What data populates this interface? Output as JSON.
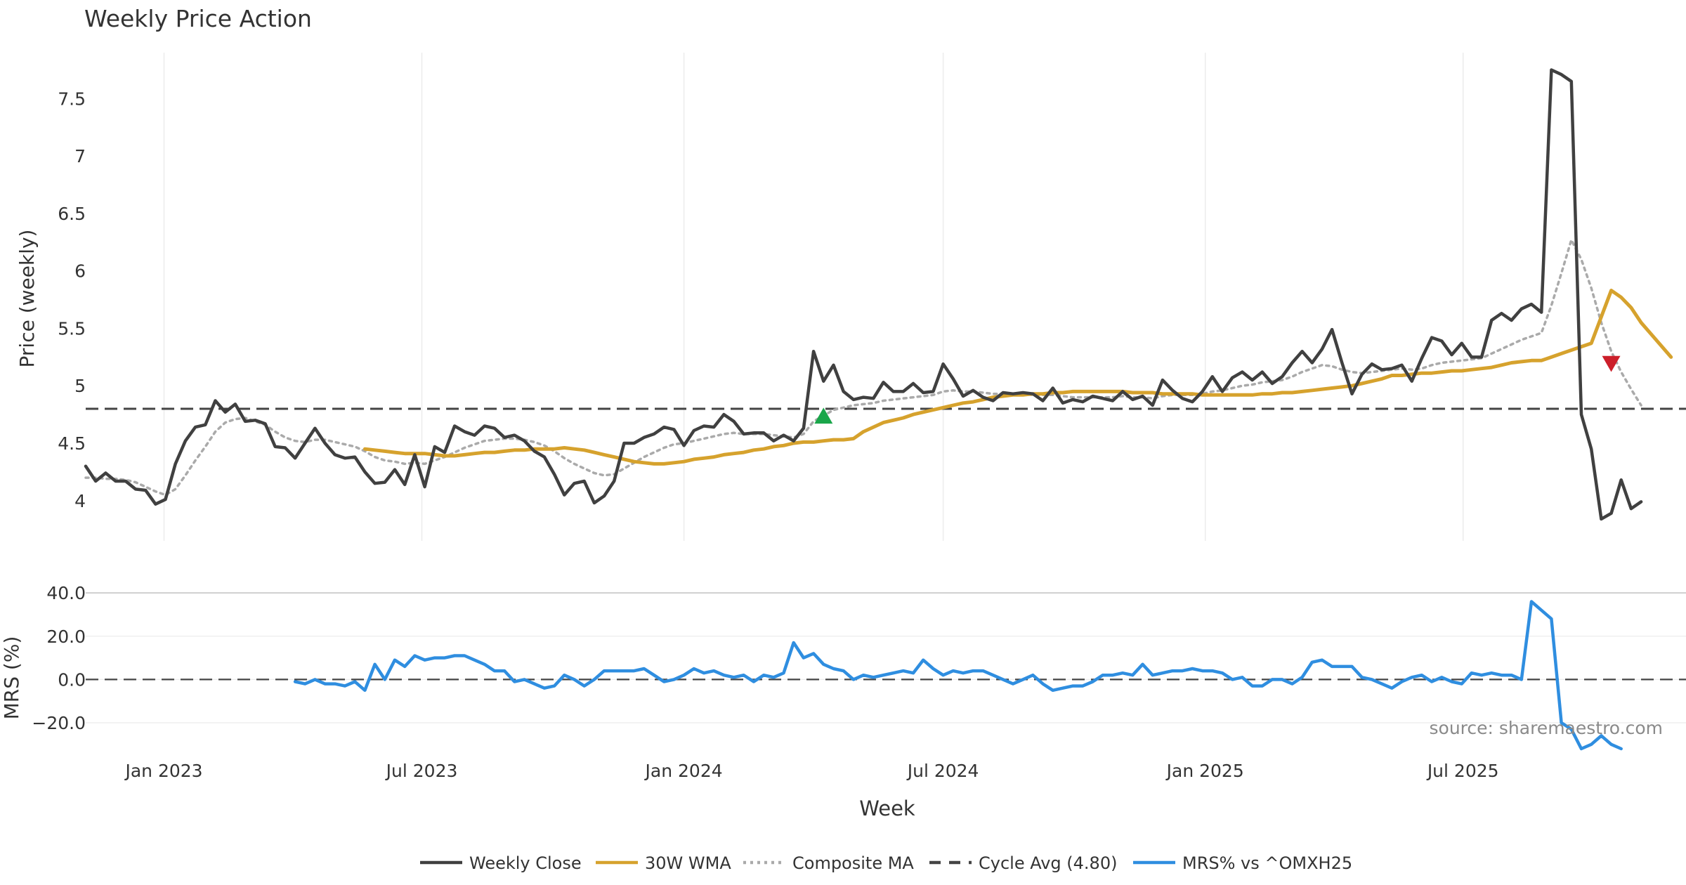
{
  "chart_data": {
    "type": "line",
    "title": "Weekly Price Action",
    "xlabel": "Week",
    "source": "source: sharemaestro.com",
    "x_ticks": [
      "Jan 2023",
      "Jul 2023",
      "Jan 2024",
      "Jul 2024",
      "Jan 2025",
      "Jul 2025"
    ],
    "x_range": [
      "2022-11-07",
      "2025-11-03"
    ],
    "price_panel": {
      "ylabel": "Price (weekly)",
      "ylim": [
        3.65,
        7.9
      ],
      "y_ticks": [
        4,
        4.5,
        5,
        5.5,
        6,
        6.5,
        7,
        7.5
      ],
      "y_tick_labels": [
        "4",
        "4.5",
        "5",
        "5.5",
        "6",
        "6.5",
        "7",
        "7.5"
      ],
      "cycle_avg": 4.8,
      "series": [
        {
          "name": "Weekly Close",
          "color": "#404040",
          "style": "solid",
          "start_date": "2022-11-07",
          "values": [
            4.3,
            4.17,
            4.24,
            4.17,
            4.17,
            4.1,
            4.09,
            3.97,
            4.01,
            4.32,
            4.52,
            4.64,
            4.66,
            4.87,
            4.77,
            4.84,
            4.69,
            4.7,
            4.67,
            4.47,
            4.46,
            4.37,
            4.5,
            4.63,
            4.5,
            4.4,
            4.37,
            4.38,
            4.25,
            4.15,
            4.16,
            4.27,
            4.14,
            4.4,
            4.12,
            4.47,
            4.42,
            4.65,
            4.6,
            4.57,
            4.65,
            4.63,
            4.55,
            4.57,
            4.52,
            4.43,
            4.38,
            4.23,
            4.05,
            4.15,
            4.17,
            3.98,
            4.04,
            4.17,
            4.5,
            4.5,
            4.55,
            4.58,
            4.64,
            4.62,
            4.48,
            4.61,
            4.65,
            4.64,
            4.75,
            4.69,
            4.58,
            4.59,
            4.59,
            4.52,
            4.57,
            4.52,
            4.63,
            5.3,
            5.04,
            5.18,
            4.95,
            4.88,
            4.9,
            4.89,
            5.03,
            4.95,
            4.95,
            5.02,
            4.94,
            4.95,
            5.19,
            5.06,
            4.91,
            4.96,
            4.9,
            4.87,
            4.94,
            4.93,
            4.94,
            4.93,
            4.87,
            4.98,
            4.85,
            4.88,
            4.86,
            4.91,
            4.89,
            4.87,
            4.95,
            4.88,
            4.91,
            4.83,
            5.05,
            4.96,
            4.89,
            4.86,
            4.95,
            5.08,
            4.95,
            5.07,
            5.12,
            5.05,
            5.12,
            5.02,
            5.08,
            5.2,
            5.3,
            5.2,
            5.32,
            5.49,
            5.2,
            4.93,
            5.1,
            5.19,
            5.14,
            5.15,
            5.18,
            5.04,
            5.24,
            5.42,
            5.39,
            5.27,
            5.37,
            5.25,
            5.25,
            5.57,
            5.63,
            5.57,
            5.67,
            5.71,
            5.64,
            7.75,
            7.71,
            7.65,
            4.75,
            4.45,
            3.84,
            3.89,
            4.18,
            3.93,
            3.99
          ]
        },
        {
          "name": "30W WMA",
          "color": "#d6a22d",
          "style": "solid",
          "start_date": "2023-05-22",
          "values": [
            4.45,
            4.44,
            4.43,
            4.42,
            4.41,
            4.41,
            4.41,
            4.4,
            4.39,
            4.39,
            4.4,
            4.41,
            4.42,
            4.42,
            4.43,
            4.44,
            4.44,
            4.45,
            4.45,
            4.45,
            4.46,
            4.45,
            4.44,
            4.42,
            4.4,
            4.38,
            4.36,
            4.34,
            4.33,
            4.32,
            4.32,
            4.33,
            4.34,
            4.36,
            4.37,
            4.38,
            4.4,
            4.41,
            4.42,
            4.44,
            4.45,
            4.47,
            4.48,
            4.5,
            4.51,
            4.51,
            4.52,
            4.53,
            4.53,
            4.54,
            4.6,
            4.64,
            4.68,
            4.7,
            4.72,
            4.75,
            4.77,
            4.79,
            4.81,
            4.83,
            4.85,
            4.86,
            4.88,
            4.9,
            4.91,
            4.92,
            4.92,
            4.93,
            4.93,
            4.94,
            4.94,
            4.95,
            4.95,
            4.95,
            4.95,
            4.95,
            4.95,
            4.94,
            4.94,
            4.94,
            4.93,
            4.93,
            4.93,
            4.93,
            4.92,
            4.92,
            4.92,
            4.92,
            4.92,
            4.92,
            4.93,
            4.93,
            4.94,
            4.94,
            4.95,
            4.96,
            4.97,
            4.98,
            4.99,
            5.0,
            5.02,
            5.04,
            5.06,
            5.09,
            5.09,
            5.1,
            5.11,
            5.11,
            5.12,
            5.13,
            5.13,
            5.14,
            5.15,
            5.16,
            5.18,
            5.2,
            5.21,
            5.22,
            5.22,
            5.25,
            5.28,
            5.31,
            5.34,
            5.37,
            5.6,
            5.83,
            5.77,
            5.68,
            5.55,
            5.45,
            5.35,
            5.25
          ]
        },
        {
          "name": "Composite MA",
          "color": "#aaaaaa",
          "style": "dotted",
          "start_date": "2022-11-07",
          "values": [
            4.2,
            4.2,
            4.19,
            4.19,
            4.18,
            4.16,
            4.12,
            4.08,
            4.05,
            4.1,
            4.22,
            4.35,
            4.47,
            4.6,
            4.68,
            4.71,
            4.72,
            4.69,
            4.66,
            4.6,
            4.55,
            4.52,
            4.51,
            4.53,
            4.53,
            4.51,
            4.49,
            4.47,
            4.43,
            4.38,
            4.35,
            4.34,
            4.32,
            4.33,
            4.32,
            4.35,
            4.38,
            4.42,
            4.46,
            4.49,
            4.52,
            4.53,
            4.54,
            4.54,
            4.53,
            4.51,
            4.48,
            4.43,
            4.37,
            4.32,
            4.28,
            4.24,
            4.22,
            4.23,
            4.28,
            4.33,
            4.38,
            4.42,
            4.46,
            4.49,
            4.5,
            4.52,
            4.54,
            4.56,
            4.58,
            4.59,
            4.58,
            4.58,
            4.58,
            4.57,
            4.56,
            4.55,
            4.58,
            4.69,
            4.74,
            4.79,
            4.81,
            4.83,
            4.84,
            4.85,
            4.87,
            4.88,
            4.89,
            4.9,
            4.91,
            4.92,
            4.95,
            4.96,
            4.95,
            4.95,
            4.94,
            4.93,
            4.93,
            4.93,
            4.93,
            4.92,
            4.92,
            4.92,
            4.91,
            4.9,
            4.9,
            4.9,
            4.9,
            4.9,
            4.91,
            4.9,
            4.9,
            4.89,
            4.91,
            4.92,
            4.92,
            4.92,
            4.93,
            4.95,
            4.96,
            4.98,
            5.0,
            5.01,
            5.03,
            5.04,
            5.05,
            5.08,
            5.12,
            5.15,
            5.18,
            5.17,
            5.14,
            5.12,
            5.11,
            5.12,
            5.13,
            5.14,
            5.15,
            5.14,
            5.15,
            5.18,
            5.2,
            5.21,
            5.22,
            5.23,
            5.24,
            5.28,
            5.32,
            5.36,
            5.4,
            5.43,
            5.46,
            5.7,
            5.98,
            6.27,
            6.1,
            5.85,
            5.55,
            5.3,
            5.12,
            4.97,
            4.83
          ]
        }
      ],
      "markers": [
        {
          "type": "buy",
          "symbol": "triangle-up",
          "color": "#1aa64a",
          "date": "2024-04-08",
          "value": 4.73
        },
        {
          "type": "sell",
          "symbol": "triangle-down",
          "color": "#cc1f2a",
          "date": "2025-10-13",
          "value": 5.2
        }
      ]
    },
    "mrs_panel": {
      "ylabel": "MRS (%)",
      "ylim": [
        -32,
        42
      ],
      "y_ticks": [
        40,
        20,
        0,
        -20
      ],
      "y_tick_labels": [
        "40.0",
        "20.0",
        "0.0",
        "−20.0"
      ],
      "series": [
        {
          "name": "MRS% vs ^OMXH25",
          "color": "#2f8ee0",
          "style": "solid",
          "start_date": "2023-04-03",
          "values": [
            -1,
            -2,
            0,
            -2,
            -2,
            -3,
            -1,
            -5,
            7,
            0,
            9,
            6,
            11,
            9,
            10,
            10,
            11,
            11,
            9,
            7,
            4,
            4,
            -1,
            0,
            -2,
            -4,
            -3,
            2,
            0,
            -3,
            0,
            4,
            4,
            4,
            4,
            5,
            2,
            -1,
            0,
            2,
            5,
            3,
            4,
            2,
            1,
            2,
            -1,
            2,
            1,
            3,
            17,
            10,
            12,
            7,
            5,
            4,
            0,
            2,
            1,
            2,
            3,
            4,
            3,
            9,
            5,
            2,
            4,
            3,
            4,
            4,
            2,
            0,
            -2,
            0,
            2,
            -2,
            -5,
            -4,
            -3,
            -3,
            -1,
            2,
            2,
            3,
            2,
            7,
            2,
            3,
            4,
            4,
            5,
            4,
            4,
            3,
            0,
            1,
            -3,
            -3,
            0,
            0,
            -2,
            1,
            8,
            9,
            6,
            6,
            6,
            1,
            0,
            -2,
            -4,
            -1,
            1,
            2,
            -1,
            1,
            -1,
            -2,
            3,
            2,
            3,
            2,
            2,
            0,
            36,
            32,
            28,
            -20,
            -23,
            -32,
            -30,
            -26,
            -30,
            -32
          ]
        }
      ]
    },
    "legend": {
      "placement": "bottom-center",
      "entries": [
        {
          "label": "Weekly Close",
          "color": "#404040",
          "style": "solid"
        },
        {
          "label": "30W WMA",
          "color": "#d6a22d",
          "style": "solid"
        },
        {
          "label": "Composite MA",
          "color": "#aaaaaa",
          "style": "dotted"
        },
        {
          "label": "Cycle Avg (4.80)",
          "color": "#444444",
          "style": "dashed"
        },
        {
          "label": "MRS% vs ^OMXH25",
          "color": "#2f8ee0",
          "style": "solid"
        }
      ]
    }
  }
}
